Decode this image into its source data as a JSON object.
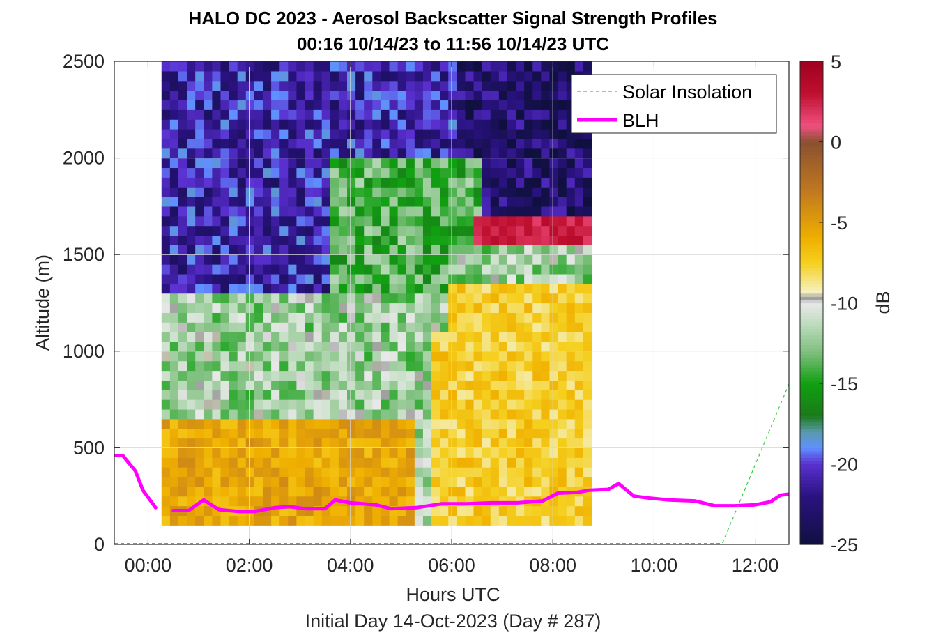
{
  "title": "HALO DC 2023 - Aerosol Backscatter Signal Strength Profiles",
  "subtitle": "00:16 10/14/23 to 11:56 10/14/23  UTC",
  "footnote": "Initial Day 14-Oct-2023 (Day # 287)",
  "chart_data": {
    "type": "heatmap",
    "title": "HALO DC 2023 - Aerosol Backscatter Signal Strength Profiles",
    "subtitle": "00:16 10/14/23 to 11:56 10/14/23  UTC",
    "xlabel": "Hours UTC",
    "ylabel": "Altitude (m)",
    "colorbar_label": "dB",
    "xlim": [
      -0.6667,
      12.6667
    ],
    "ylim": [
      0,
      2500
    ],
    "x_ticks": [
      0,
      2,
      4,
      6,
      8,
      10,
      12
    ],
    "x_tick_labels": [
      "00:00",
      "02:00",
      "04:00",
      "06:00",
      "08:00",
      "10:00",
      "12:00"
    ],
    "y_ticks": [
      0,
      500,
      1000,
      1500,
      2000,
      2500
    ],
    "y_tick_labels": [
      "0",
      "500",
      "1000",
      "1500",
      "2000",
      "2500"
    ],
    "clim": [
      -25,
      5
    ],
    "colorbar_ticks": [
      5,
      0,
      -5,
      -10,
      -15,
      -20,
      -25
    ],
    "colorbar_tick_labels": [
      "5",
      "0",
      "-5",
      "-10",
      "-15",
      "-20",
      "-25"
    ],
    "colormap": [
      [
        -25,
        "#101040"
      ],
      [
        -22,
        "#2a1280"
      ],
      [
        -20,
        "#5a30d0"
      ],
      [
        -19,
        "#6090ff"
      ],
      [
        -18,
        "#5a9aaa"
      ],
      [
        -17,
        "#1a7a1a"
      ],
      [
        -15,
        "#10a010"
      ],
      [
        -13,
        "#80c080"
      ],
      [
        -11,
        "#c8e0c8"
      ],
      [
        -10,
        "#e8e8e8"
      ],
      [
        -9.7,
        "#a0a0a0"
      ],
      [
        -9.3,
        "#f5f0c0"
      ],
      [
        -7.5,
        "#f5d020"
      ],
      [
        -6,
        "#f0b000"
      ],
      [
        -3,
        "#c07820"
      ],
      [
        0,
        "#8a5030"
      ],
      [
        1,
        "#f05080"
      ],
      [
        3,
        "#c01030"
      ],
      [
        5,
        "#a00020"
      ]
    ],
    "grid": true,
    "legend": {
      "position": "top-right",
      "entries": [
        "Solar Insolation",
        "BLH"
      ]
    },
    "heatmap": {
      "x_start": 0.2667,
      "x_step": 0.1667,
      "columns": 51,
      "y_start": 100,
      "y_step": 50,
      "rows": 48,
      "note_values": "backscatter signal strength in dB per time/altitude cell"
    },
    "series": [
      {
        "name": "BLH",
        "color": "#ff00ff",
        "segments": [
          [
            [
              -0.6667,
              460
            ],
            [
              -0.5,
              460
            ],
            [
              -0.25,
              380
            ],
            [
              -0.1,
              280
            ],
            [
              0.15,
              190
            ]
          ],
          [
            [
              0.5,
              175
            ],
            [
              0.8,
              175
            ],
            [
              1.1,
              230
            ],
            [
              1.4,
              180
            ],
            [
              1.8,
              170
            ],
            [
              2.1,
              170
            ],
            [
              2.5,
              190
            ],
            [
              2.8,
              195
            ],
            [
              3.1,
              185
            ],
            [
              3.5,
              185
            ],
            [
              3.7,
              230
            ],
            [
              4.0,
              215
            ],
            [
              4.5,
              205
            ],
            [
              4.8,
              185
            ],
            [
              5.3,
              190
            ],
            [
              5.8,
              210
            ],
            [
              6.3,
              210
            ],
            [
              6.8,
              215
            ],
            [
              7.3,
              215
            ],
            [
              7.8,
              225
            ],
            [
              8.1,
              265
            ],
            [
              8.5,
              270
            ],
            [
              8.7,
              280
            ],
            [
              9.1,
              285
            ],
            [
              9.3,
              315
            ],
            [
              9.6,
              250
            ],
            [
              9.9,
              240
            ],
            [
              10.3,
              230
            ],
            [
              10.8,
              225
            ],
            [
              11.2,
              200
            ],
            [
              11.6,
              200
            ],
            [
              12.0,
              205
            ],
            [
              12.3,
              220
            ],
            [
              12.5,
              255
            ],
            [
              12.6667,
              260
            ]
          ]
        ]
      },
      {
        "name": "Solar Insolation",
        "color": "#2ecc40",
        "style": "dashed",
        "segments": [
          [
            [
              -0.6667,
              5
            ],
            [
              11.35,
              5
            ],
            [
              12.6667,
              830
            ]
          ]
        ]
      }
    ]
  }
}
